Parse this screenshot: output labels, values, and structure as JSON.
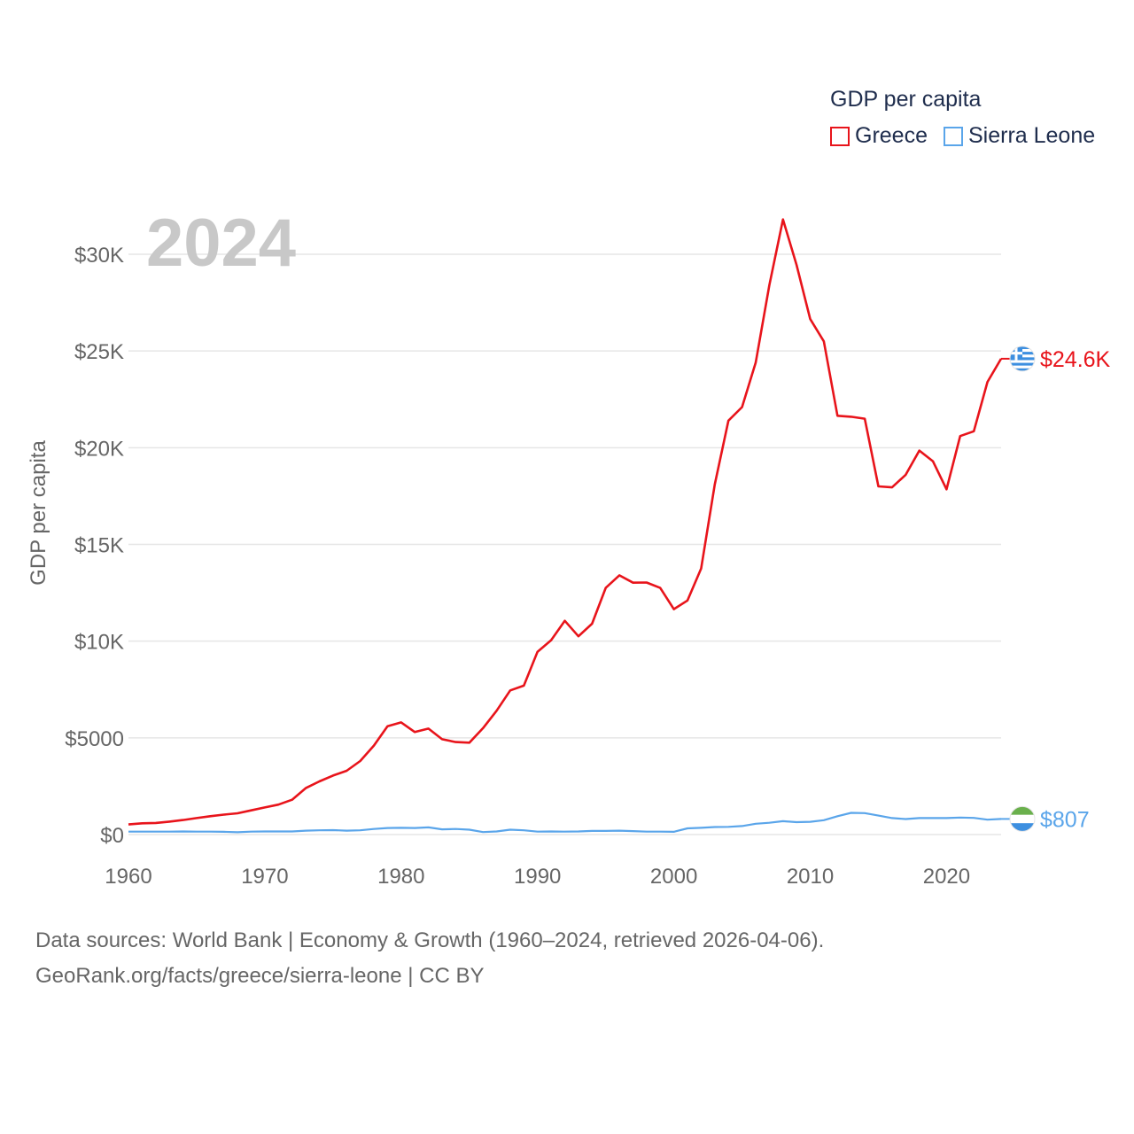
{
  "legend": {
    "title": "GDP per capita",
    "items": [
      {
        "label": "Greece",
        "color": "#e8141b"
      },
      {
        "label": "Sierra Leone",
        "color": "#5aa5ea"
      }
    ]
  },
  "footer": {
    "line1": "Data sources: World Bank | Economy & Growth (1960–2024, retrieved 2026-04-06).",
    "line2": "GeoRank.org/facts/greece/sierra-leone | CC BY"
  },
  "chart_data": {
    "type": "line",
    "year_label": "2024",
    "ylabel": "GDP per capita",
    "xlim": [
      1960,
      2024
    ],
    "ylim": [
      0,
      30000
    ],
    "x_ticks": [
      {
        "value": 1960,
        "label": "1960"
      },
      {
        "value": 1970,
        "label": "1970"
      },
      {
        "value": 1980,
        "label": "1980"
      },
      {
        "value": 1990,
        "label": "1990"
      },
      {
        "value": 2000,
        "label": "2000"
      },
      {
        "value": 2010,
        "label": "2010"
      },
      {
        "value": 2020,
        "label": "2020"
      }
    ],
    "y_ticks": [
      {
        "value": 0,
        "label": "$0"
      },
      {
        "value": 5000,
        "label": "$5000"
      },
      {
        "value": 10000,
        "label": "$10K"
      },
      {
        "value": 15000,
        "label": "$15K"
      },
      {
        "value": 20000,
        "label": "$20K"
      },
      {
        "value": 25000,
        "label": "$25K"
      },
      {
        "value": 30000,
        "label": "$30K"
      }
    ],
    "x": [
      1960,
      1961,
      1962,
      1963,
      1964,
      1965,
      1966,
      1967,
      1968,
      1969,
      1970,
      1971,
      1972,
      1973,
      1974,
      1975,
      1976,
      1977,
      1978,
      1979,
      1980,
      1981,
      1982,
      1983,
      1984,
      1985,
      1986,
      1987,
      1988,
      1989,
      1990,
      1991,
      1992,
      1993,
      1994,
      1995,
      1996,
      1997,
      1998,
      1999,
      2000,
      2001,
      2002,
      2003,
      2004,
      2005,
      2006,
      2007,
      2008,
      2009,
      2010,
      2011,
      2012,
      2013,
      2014,
      2015,
      2016,
      2017,
      2018,
      2019,
      2020,
      2021,
      2022,
      2023,
      2024
    ],
    "series": [
      {
        "name": "Greece",
        "color": "#e8141b",
        "end_label": "$24.6K",
        "values": [
          520,
          580,
          600,
          670,
          750,
          850,
          950,
          1030,
          1100,
          1250,
          1400,
          1550,
          1800,
          2400,
          2750,
          3050,
          3300,
          3800,
          4600,
          5600,
          5800,
          5300,
          5480,
          4930,
          4780,
          4750,
          5500,
          6400,
          7450,
          7700,
          9450,
          10050,
          11050,
          10250,
          10900,
          12750,
          13400,
          13020,
          13030,
          12750,
          11650,
          12100,
          13750,
          18100,
          21400,
          22100,
          24400,
          28400,
          31800,
          29450,
          26650,
          25500,
          21650,
          21600,
          21500,
          18000,
          17950,
          18600,
          19850,
          19300,
          17850,
          20600,
          20850,
          23400,
          24600
        ]
      },
      {
        "name": "Sierra Leone",
        "color": "#5aa5ea",
        "end_label": "$807",
        "values": [
          150,
          150,
          150,
          150,
          160,
          150,
          150,
          140,
          120,
          150,
          160,
          160,
          160,
          200,
          220,
          230,
          200,
          220,
          290,
          340,
          350,
          340,
          370,
          270,
          290,
          250,
          130,
          160,
          250,
          220,
          150,
          160,
          150,
          160,
          190,
          190,
          200,
          180,
          150,
          150,
          140,
          320,
          350,
          390,
          400,
          440,
          560,
          610,
          690,
          640,
          660,
          740,
          950,
          1120,
          1110,
          980,
          850,
          800,
          850,
          850,
          850,
          880,
          860,
          770,
          807
        ]
      }
    ]
  }
}
